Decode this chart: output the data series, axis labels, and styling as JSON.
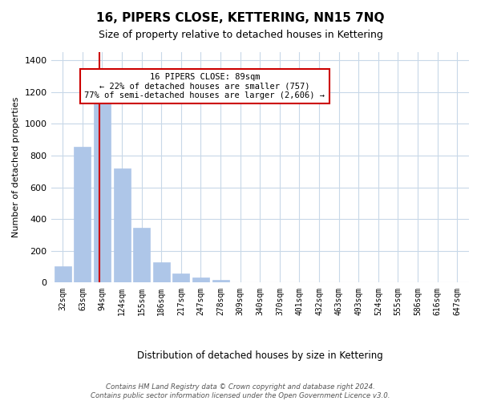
{
  "title": "16, PIPERS CLOSE, KETTERING, NN15 7NQ",
  "subtitle": "Size of property relative to detached houses in Kettering",
  "xlabel": "Distribution of detached houses by size in Kettering",
  "ylabel": "Number of detached properties",
  "bar_labels": [
    "32sqm",
    "63sqm",
    "94sqm",
    "124sqm",
    "155sqm",
    "186sqm",
    "217sqm",
    "247sqm",
    "278sqm",
    "309sqm",
    "340sqm",
    "370sqm",
    "401sqm",
    "432sqm",
    "463sqm",
    "493sqm",
    "524sqm",
    "555sqm",
    "586sqm",
    "616sqm",
    "647sqm"
  ],
  "bar_values": [
    105,
    855,
    1130,
    720,
    345,
    130,
    60,
    30,
    18,
    0,
    0,
    0,
    0,
    0,
    0,
    0,
    0,
    0,
    0,
    0,
    0
  ],
  "bar_color": "#aec6e8",
  "vline_x": 1.85,
  "vline_color": "#cc0000",
  "ylim": [
    0,
    1450
  ],
  "yticks": [
    0,
    200,
    400,
    600,
    800,
    1000,
    1200,
    1400
  ],
  "annotation_title": "16 PIPERS CLOSE: 89sqm",
  "annotation_line1": "← 22% of detached houses are smaller (757)",
  "annotation_line2": "77% of semi-detached houses are larger (2,606) →",
  "annotation_box_color": "#ffffff",
  "annotation_box_edgecolor": "#cc0000",
  "footer1": "Contains HM Land Registry data © Crown copyright and database right 2024.",
  "footer2": "Contains public sector information licensed under the Open Government Licence v3.0.",
  "background_color": "#ffffff",
  "grid_color": "#c8d8e8"
}
